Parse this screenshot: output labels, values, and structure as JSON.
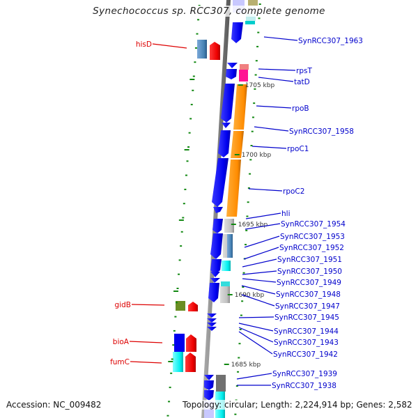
{
  "title": "Synechococcus sp. RCC307, complete genome",
  "footer": {
    "accession": "Accession: NC_009482",
    "summary": "Topology: circular; Length: 2,224,914 bp; Genes: 2,582"
  },
  "colors": {
    "backbone": "#888888",
    "tick": "#118811",
    "right_label": "#0000cc",
    "left_label": "#dd0000",
    "cds_forward": "#0000ee",
    "cds_reverse": "#ee0000"
  },
  "scale_markers": [
    {
      "label": "1705 kbp"
    },
    {
      "label": "1700 kbp"
    },
    {
      "label": "1695 kbp"
    },
    {
      "label": "1690 kbp"
    },
    {
      "label": "1685 kbp"
    }
  ],
  "right_labels": [
    {
      "text": "SynRCC307_1963"
    },
    {
      "text": "rpsT"
    },
    {
      "text": "tatD"
    },
    {
      "text": "rpoB"
    },
    {
      "text": "SynRCC307_1958"
    },
    {
      "text": "rpoC1"
    },
    {
      "text": "rpoC2"
    },
    {
      "text": "hli"
    },
    {
      "text": "SynRCC307_1954"
    },
    {
      "text": "SynRCC307_1953"
    },
    {
      "text": "SynRCC307_1952"
    },
    {
      "text": "SynRCC307_1951"
    },
    {
      "text": "SynRCC307_1950"
    },
    {
      "text": "SynRCC307_1949"
    },
    {
      "text": "SynRCC307_1948"
    },
    {
      "text": "SynRCC307_1947"
    },
    {
      "text": "SynRCC307_1945"
    },
    {
      "text": "SynRCC307_1944"
    },
    {
      "text": "SynRCC307_1943"
    },
    {
      "text": "SynRCC307_1942"
    },
    {
      "text": "SynRCC307_1939"
    },
    {
      "text": "SynRCC307_1938"
    }
  ],
  "left_labels": [
    {
      "text": "hisD"
    },
    {
      "text": "gidB"
    },
    {
      "text": "bioA"
    },
    {
      "text": "fumC"
    }
  ]
}
